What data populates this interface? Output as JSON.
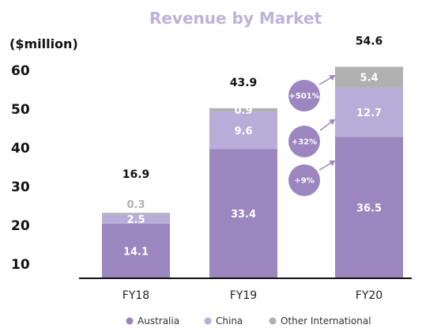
{
  "chart_data": {
    "type": "bar",
    "stacked": true,
    "title": "Revenue by Market",
    "ylabel": "($million)",
    "xlabel": "",
    "yticks": [
      10,
      20,
      30,
      40,
      50,
      60
    ],
    "ylim": [
      5,
      61
    ],
    "categories": [
      "FY18",
      "FY19",
      "FY20"
    ],
    "series": [
      {
        "name": "Australia",
        "values": [
          14.1,
          33.4,
          36.5
        ],
        "color": "#9C86BF",
        "label_color": "#ffffff"
      },
      {
        "name": "China",
        "values": [
          2.5,
          9.6,
          12.7
        ],
        "color": "#B7ADD8",
        "label_color": "#ffffff"
      },
      {
        "name": "Other International",
        "values": [
          0.3,
          0.9,
          5.4
        ],
        "color": "#B0B0B0",
        "label_color": "#ffffff"
      }
    ],
    "totals": [
      "16.9",
      "43.9",
      "54.6"
    ],
    "segment_labels": [
      [
        "14.1",
        "33.4",
        "36.5"
      ],
      [
        "2.5",
        "9.6",
        "12.7"
      ],
      [
        "0.3",
        "0.9",
        "5.4"
      ]
    ],
    "growth_annotations": [
      {
        "text": "+501%",
        "series": "Other International"
      },
      {
        "text": "+32%",
        "series": "China"
      },
      {
        "text": "+9%",
        "series": "Australia"
      }
    ],
    "legend_position": "bottom",
    "grid": false
  },
  "colors": {
    "title": "#BDB2D9",
    "bubble": "#9C86BF",
    "arrow": "#9C86BF",
    "axis": "#111111",
    "other_label_fy18": "#B0B0B0"
  }
}
